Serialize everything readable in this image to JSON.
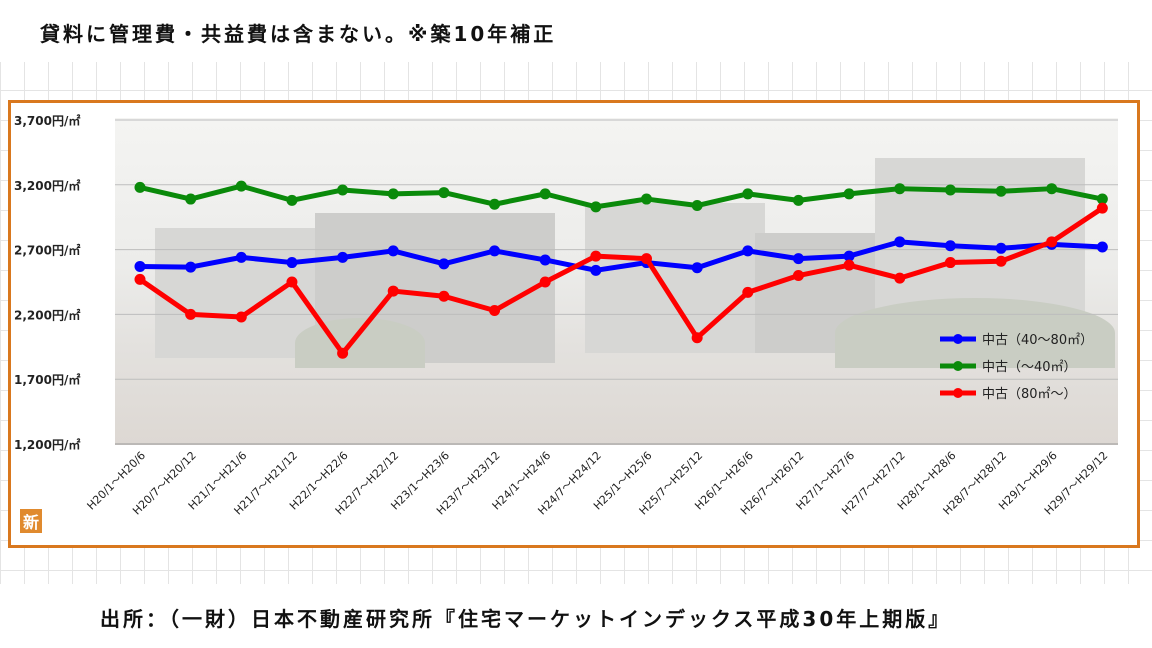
{
  "header": {
    "title": "貸料に管理費・共益費は含まない。※築10年補正"
  },
  "footer": {
    "source": "出所：（一財）日本不動産研究所『住宅マーケットインデックス平成30年上期版』"
  },
  "icon": {
    "label": "新"
  },
  "chart_data": {
    "type": "line",
    "title": "",
    "xlabel": "",
    "ylabel": "",
    "ylim": [
      1200,
      3700
    ],
    "y_ticks": [
      1200,
      1700,
      2200,
      2700,
      3200,
      3700
    ],
    "y_tick_labels": [
      "1,200円/㎡",
      "1,700円/㎡",
      "2,200円/㎡",
      "2,700円/㎡",
      "3,200円/㎡",
      "3,700円/㎡"
    ],
    "categories": [
      "H20/1～H20/6",
      "H20/7～H20/12",
      "H21/1～H21/6",
      "H21/7～H21/12",
      "H22/1～H22/6",
      "H22/7～H22/12",
      "H23/1～H23/6",
      "H23/7～H23/12",
      "H24/1～H24/6",
      "H24/7～H24/12",
      "H25/1～H25/6",
      "H25/7～H25/12",
      "H26/1～H26/6",
      "H26/7～H26/12",
      "H27/1～H27/6",
      "H27/7～H27/12",
      "H28/1～H28/6",
      "H28/7～H28/12",
      "H29/1～H29/6",
      "H29/7～H29/12"
    ],
    "series": [
      {
        "name": "中古（40～80㎡）",
        "color": "#0000ff",
        "values": [
          2570,
          2565,
          2640,
          2600,
          2640,
          2690,
          2590,
          2690,
          2620,
          2540,
          2600,
          2560,
          2690,
          2630,
          2650,
          2760,
          2730,
          2710,
          2740,
          2720
        ]
      },
      {
        "name": "中古（～40㎡）",
        "color": "#0a8a0a",
        "values": [
          3180,
          3090,
          3190,
          3080,
          3160,
          3130,
          3140,
          3050,
          3130,
          3030,
          3090,
          3040,
          3130,
          3080,
          3130,
          3170,
          3160,
          3150,
          3170,
          3090
        ]
      },
      {
        "name": "中古（80㎡～）",
        "color": "#ff0000",
        "values": [
          2470,
          2200,
          2180,
          2450,
          1900,
          2380,
          2340,
          2230,
          2450,
          2650,
          2630,
          2020,
          2370,
          2500,
          2580,
          2480,
          2600,
          2610,
          2760,
          3020
        ]
      }
    ],
    "legend_position": "right",
    "grid": "horizontal"
  }
}
